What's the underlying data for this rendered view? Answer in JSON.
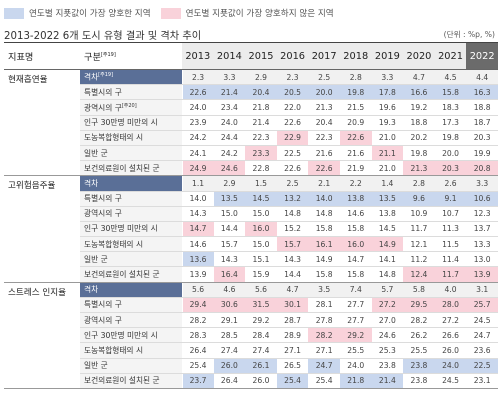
{
  "legend": {
    "best": "연도별 지푯값이 가장 양호한 지역",
    "worst": "연도별 지푯값이 가장 양호하지 않은 지역"
  },
  "title": "2013-2022 6개 도시 유형 결과 및 격차 추이",
  "unit": "(단위 : %p, %)",
  "colors": {
    "best": "#c9d7ee",
    "worst": "#f9d2da",
    "header_accent": "#5a6f97",
    "last_year_header": "#6b6b6b"
  },
  "chart_data": {
    "type": "table",
    "header": {
      "indicator": "지표명",
      "type": "구분",
      "type_note": "주19",
      "years": [
        "2013",
        "2014",
        "2015",
        "2016",
        "2017",
        "2018",
        "2019",
        "2020",
        "2021",
        "2022"
      ]
    },
    "groups": [
      {
        "indicator": "현재흡연율",
        "rows": [
          {
            "label": "격차",
            "note": "주19",
            "values": [
              "2.3",
              "3.3",
              "2.9",
              "2.3",
              "2.5",
              "2.8",
              "3.3",
              "4.7",
              "4.5",
              "4.4"
            ],
            "hl": "----------"
          },
          {
            "label": "특별시의 구",
            "note": "",
            "values": [
              "22.6",
              "21.4",
              "20.4",
              "20.5",
              "20.0",
              "19.8",
              "17.8",
              "16.6",
              "15.8",
              "16.3"
            ],
            "hl": "BBBBBBBBBB"
          },
          {
            "label": "광역시의 구",
            "note": "주20",
            "values": [
              "24.0",
              "23.4",
              "21.8",
              "22.0",
              "21.3",
              "21.5",
              "19.6",
              "19.2",
              "18.3",
              "18.8"
            ],
            "hl": "----------"
          },
          {
            "label": "인구 30만명 미만의 시",
            "note": "",
            "values": [
              "23.9",
              "24.0",
              "21.4",
              "22.6",
              "20.4",
              "20.9",
              "19.3",
              "18.8",
              "17.3",
              "18.7"
            ],
            "hl": "----------"
          },
          {
            "label": "도농복합형태의 시",
            "note": "",
            "values": [
              "24.2",
              "24.4",
              "22.3",
              "22.9",
              "22.3",
              "22.6",
              "21.0",
              "20.2",
              "19.8",
              "20.3"
            ],
            "hl": "---W-W----"
          },
          {
            "label": "일반 군",
            "note": "",
            "values": [
              "24.1",
              "24.2",
              "23.3",
              "22.5",
              "21.6",
              "21.6",
              "21.1",
              "19.8",
              "20.0",
              "19.9"
            ],
            "hl": "--W---W---"
          },
          {
            "label": "보건의료원이 설치된 군",
            "note": "",
            "values": [
              "24.9",
              "24.6",
              "22.8",
              "22.6",
              "22.6",
              "21.9",
              "21.0",
              "21.3",
              "20.3",
              "20.8"
            ],
            "hl": "WW--W--WWW"
          }
        ]
      },
      {
        "indicator": "고위험음주율",
        "rows": [
          {
            "label": "격차",
            "note": "",
            "values": [
              "1.1",
              "2.9",
              "1.5",
              "2.5",
              "2.1",
              "2.2",
              "1.4",
              "2.8",
              "2.6",
              "3.3"
            ],
            "hl": "----------"
          },
          {
            "label": "특별시의 구",
            "note": "",
            "values": [
              "14.0",
              "13.5",
              "14.5",
              "13.2",
              "14.0",
              "13.8",
              "13.5",
              "9.6",
              "9.1",
              "10.6"
            ],
            "hl": "-BBBBBBBBB"
          },
          {
            "label": "광역시의 구",
            "note": "",
            "values": [
              "14.3",
              "15.0",
              "15.0",
              "14.8",
              "14.8",
              "14.6",
              "13.8",
              "10.9",
              "10.7",
              "12.3"
            ],
            "hl": "----------"
          },
          {
            "label": "인구 30만명 미만의 시",
            "note": "",
            "values": [
              "14.7",
              "14.4",
              "16.0",
              "15.2",
              "15.8",
              "15.8",
              "14.5",
              "11.7",
              "11.3",
              "13.7"
            ],
            "hl": "W-W-------"
          },
          {
            "label": "도농복합형태의 시",
            "note": "",
            "values": [
              "14.6",
              "15.7",
              "15.0",
              "15.7",
              "16.1",
              "16.0",
              "14.9",
              "12.1",
              "11.5",
              "13.3"
            ],
            "hl": "---WWWW---"
          },
          {
            "label": "일반 군",
            "note": "",
            "values": [
              "13.6",
              "14.3",
              "15.1",
              "14.3",
              "14.9",
              "14.7",
              "14.1",
              "11.2",
              "11.4",
              "13.0"
            ],
            "hl": "B---------"
          },
          {
            "label": "보건의료원이 설치된 군",
            "note": "",
            "values": [
              "13.9",
              "16.4",
              "15.9",
              "14.4",
              "15.8",
              "15.8",
              "14.8",
              "12.4",
              "11.7",
              "13.9"
            ],
            "hl": "-W-----WWW"
          }
        ]
      },
      {
        "indicator": "스트레스 인지율",
        "rows": [
          {
            "label": "격차",
            "note": "",
            "values": [
              "5.6",
              "4.6",
              "5.6",
              "4.7",
              "3.5",
              "7.4",
              "5.7",
              "5.8",
              "4.0",
              "3.1"
            ],
            "hl": "----------"
          },
          {
            "label": "특별시의 구",
            "note": "",
            "values": [
              "29.4",
              "30.6",
              "31.5",
              "30.1",
              "28.1",
              "27.7",
              "27.2",
              "29.5",
              "28.0",
              "25.7"
            ],
            "hl": "WWWW--WWWW"
          },
          {
            "label": "광역시의 구",
            "note": "",
            "values": [
              "28.2",
              "29.1",
              "29.2",
              "28.7",
              "27.8",
              "27.7",
              "27.0",
              "28.2",
              "27.2",
              "24.5"
            ],
            "hl": "----------"
          },
          {
            "label": "인구 30만명 미만의 시",
            "note": "",
            "values": [
              "28.3",
              "28.5",
              "28.4",
              "28.9",
              "28.2",
              "29.2",
              "24.6",
              "26.2",
              "26.6",
              "24.7"
            ],
            "hl": "----WW----"
          },
          {
            "label": "도농복합형태의 시",
            "note": "",
            "values": [
              "26.4",
              "27.4",
              "27.4",
              "27.1",
              "27.1",
              "25.5",
              "25.3",
              "25.5",
              "26.0",
              "23.6"
            ],
            "hl": "----------"
          },
          {
            "label": "일반 군",
            "note": "",
            "values": [
              "25.4",
              "26.0",
              "26.1",
              "26.5",
              "24.7",
              "24.0",
              "23.8",
              "23.8",
              "24.0",
              "22.5"
            ],
            "hl": "-BB-B--BBB"
          },
          {
            "label": "보건의료원이 설치된 군",
            "note": "",
            "values": [
              "23.7",
              "26.4",
              "26.0",
              "25.4",
              "25.4",
              "21.8",
              "21.4",
              "23.8",
              "24.5",
              "23.1"
            ],
            "hl": "B--B-BB---"
          }
        ]
      }
    ]
  }
}
